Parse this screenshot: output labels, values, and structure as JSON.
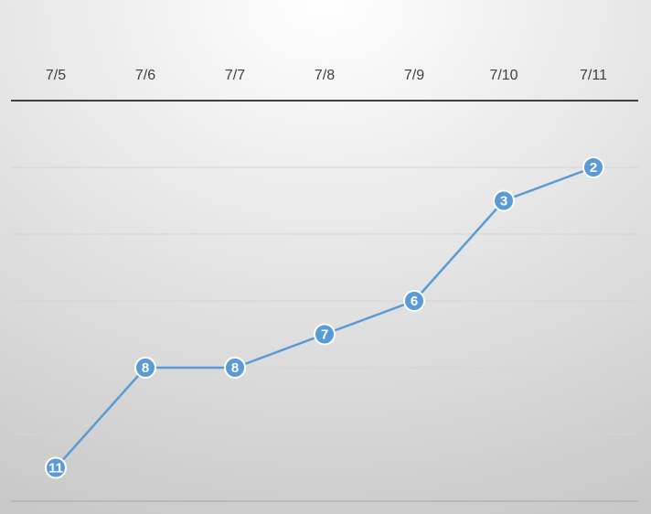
{
  "chart_data": {
    "type": "line",
    "categories": [
      "7/5",
      "7/6",
      "7/7",
      "7/8",
      "7/9",
      "7/10",
      "7/11"
    ],
    "values": [
      11,
      8,
      8,
      7,
      6,
      3,
      2
    ],
    "color": "#5b9bd5",
    "ylim": [
      0,
      12
    ],
    "y_reversed": true,
    "yticks": [
      2,
      4,
      6,
      8,
      10,
      12
    ],
    "ytick_labels": false,
    "grid": true,
    "x_axis_position": "top",
    "data_labels": true
  }
}
